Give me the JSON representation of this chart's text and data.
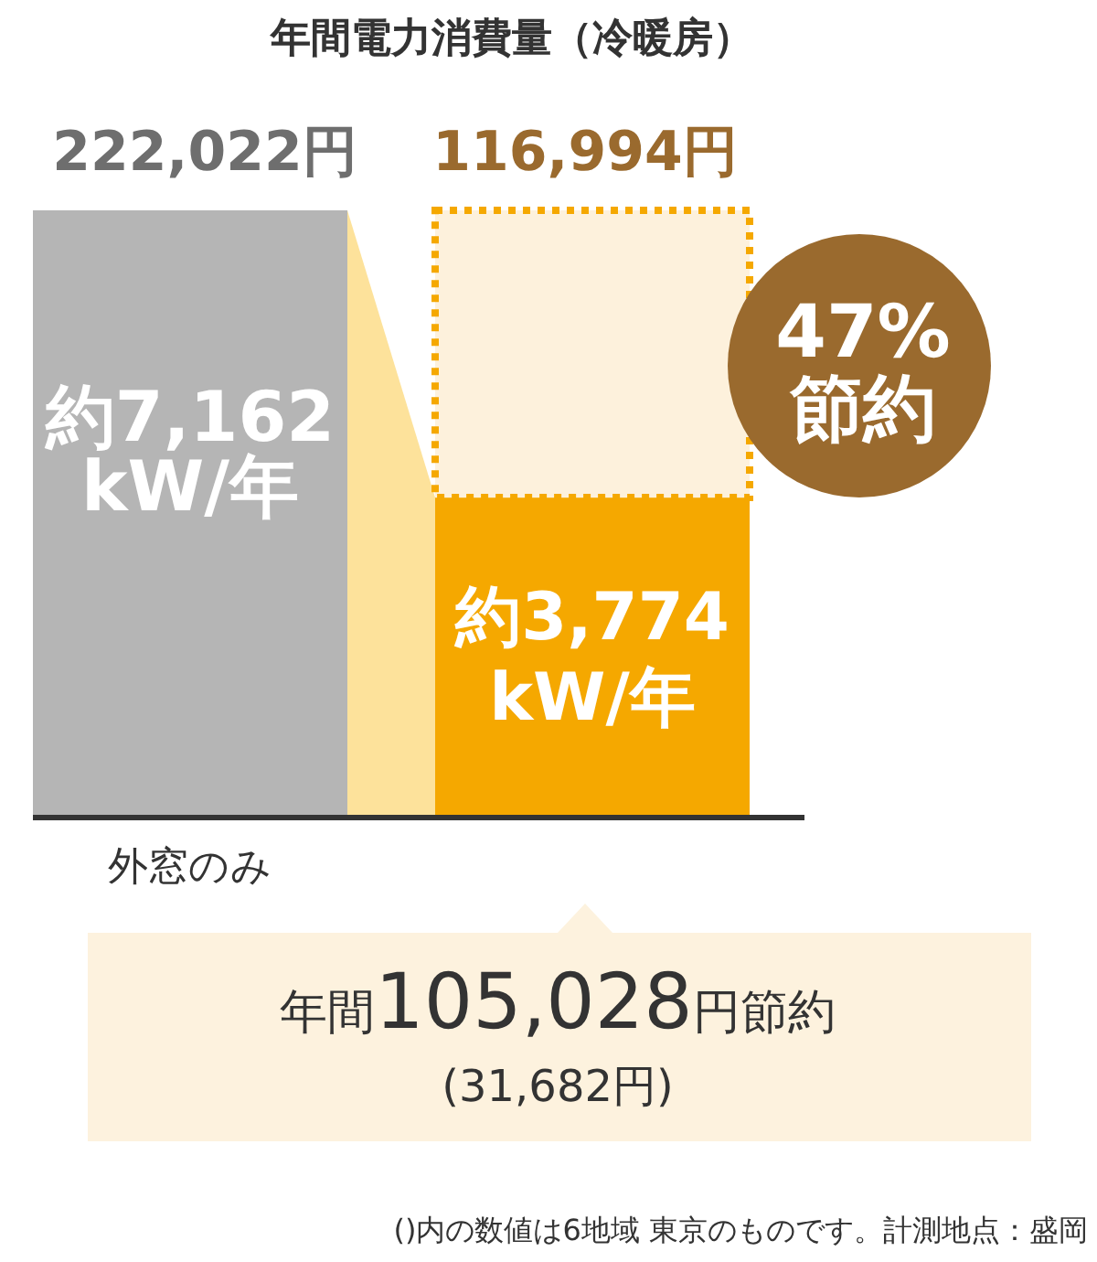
{
  "chart_data": {
    "type": "bar",
    "title": "年間電力消費量（冷暖房）",
    "stacked": true,
    "categories": [
      "外窓のみ",
      null
    ],
    "series": [
      {
        "colors": [
          "#b5b5b5",
          "#f5a800"
        ],
        "values": [
          7162,
          3774
        ],
        "value_labels": [
          "約7,162\nkW/年",
          "約3,774\nkW/年"
        ]
      },
      {
        "color": "#fdf1dc",
        "values": [
          null,
          3388
        ],
        "line_style": "dotted"
      }
    ],
    "annotations": [
      "222,022円",
      "116,994円",
      "47%\n節約",
      "年間105,028円節約",
      "(31,682円)",
      "()内の数値は6地域 東京のものです。計測地点：盛岡"
    ]
  }
}
